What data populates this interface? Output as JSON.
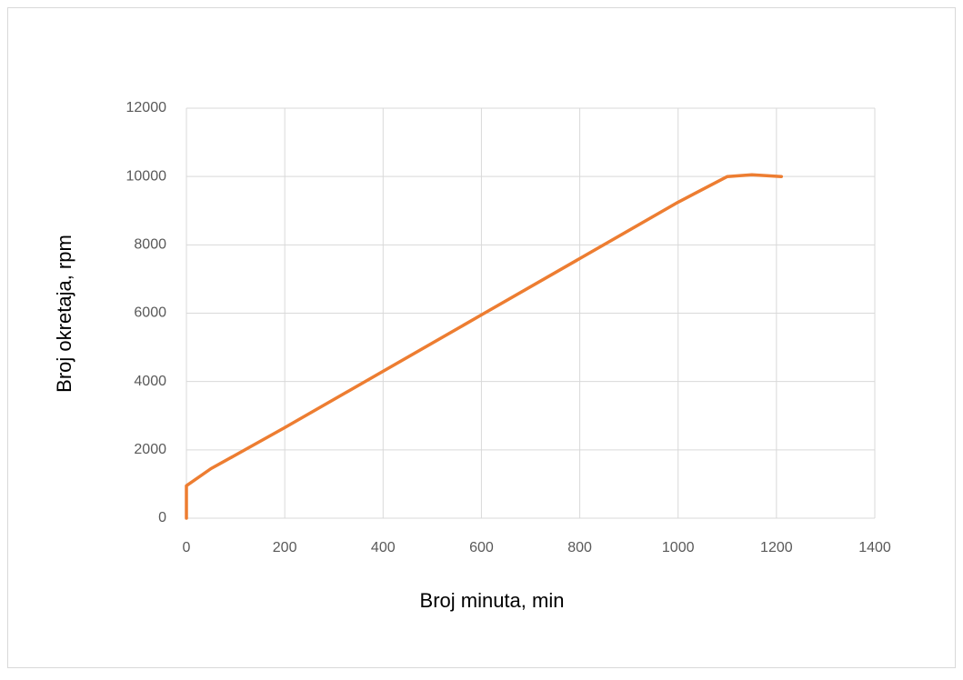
{
  "chart_data": {
    "type": "line",
    "x_label": "Broj minuta, min",
    "y_label": "Broj okretaja, rpm",
    "series": [
      {
        "name": "Broj okretaja",
        "color": "#ed7d31",
        "x": [
          0,
          0,
          50,
          100,
          200,
          400,
          600,
          800,
          1000,
          1100,
          1150,
          1210
        ],
        "values": [
          0,
          950,
          1450,
          1850,
          2650,
          4300,
          5950,
          7600,
          9250,
          10000,
          10050,
          10000
        ]
      }
    ],
    "xlim": [
      0,
      1400
    ],
    "xticks": [
      0,
      200,
      400,
      600,
      800,
      1000,
      1200,
      1400
    ],
    "ylim": [
      0,
      12000
    ],
    "yticks": [
      0,
      2000,
      4000,
      6000,
      8000,
      10000,
      12000
    ],
    "grid": true
  }
}
